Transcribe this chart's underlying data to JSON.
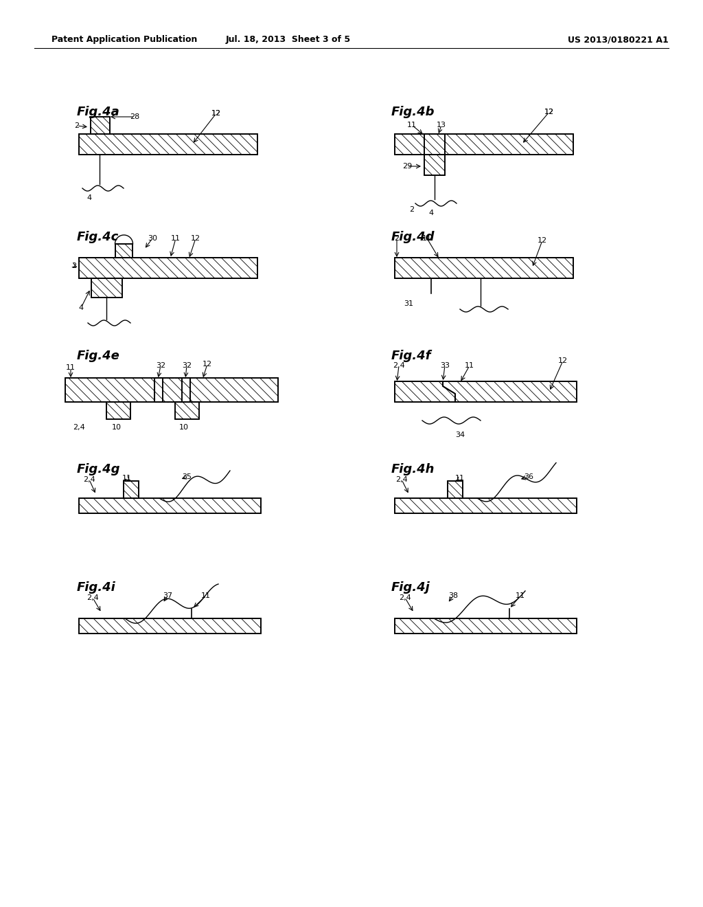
{
  "bg_color": "#ffffff",
  "header_line1": "Patent Application Publication",
  "header_line2": "Jul. 18, 2013  Sheet 3 of 5",
  "header_line3": "US 2013/0180221 A1"
}
